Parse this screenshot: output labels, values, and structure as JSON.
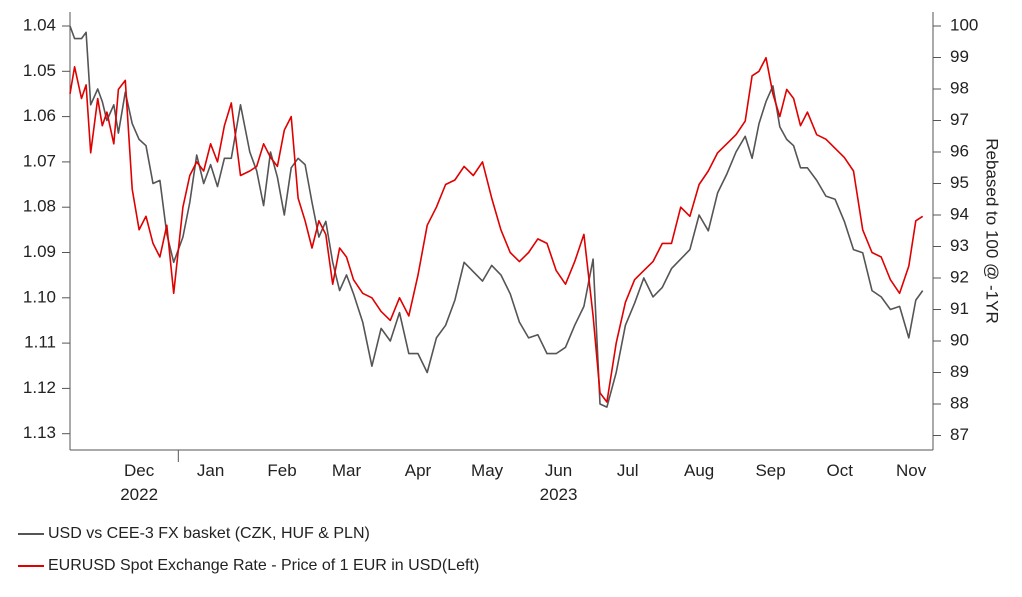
{
  "chart_data": {
    "type": "line",
    "title": "",
    "x_ticks": [
      "Dec",
      "Jan",
      "Feb",
      "Mar",
      "Apr",
      "May",
      "Jun",
      "Jul",
      "Aug",
      "Sep",
      "Oct",
      "Nov"
    ],
    "x_years": [
      "2022",
      "2023"
    ],
    "left_axis": {
      "ticks": [
        "1.04",
        "1.05",
        "1.06",
        "1.07",
        "1.08",
        "1.09",
        "1.10",
        "1.11",
        "1.12",
        "1.13"
      ],
      "range": [
        1.04,
        1.13
      ],
      "inverted": true
    },
    "right_axis": {
      "label": "Rebased to 100 @ -1YR",
      "ticks": [
        "100",
        "99",
        "98",
        "97",
        "96",
        "95",
        "94",
        "93",
        "92",
        "91",
        "90",
        "89",
        "88",
        "87"
      ],
      "range": [
        87,
        100
      ]
    },
    "grid": false,
    "legend_position": "bottom-left",
    "series": [
      {
        "name": "USD vs CEE-3 FX basket (CZK, HUF & PLN)",
        "axis": "right",
        "color": "#555555",
        "x": [
          "2022-11-15",
          "2022-11-17",
          "2022-11-20",
          "2022-11-22",
          "2022-11-24",
          "2022-11-27",
          "2022-11-29",
          "2022-12-01",
          "2022-12-04",
          "2022-12-06",
          "2022-12-09",
          "2022-12-12",
          "2022-12-15",
          "2022-12-18",
          "2022-12-21",
          "2022-12-24",
          "2022-12-27",
          "2022-12-30",
          "2023-01-03",
          "2023-01-06",
          "2023-01-09",
          "2023-01-12",
          "2023-01-15",
          "2023-01-18",
          "2023-01-21",
          "2023-01-24",
          "2023-01-28",
          "2023-02-01",
          "2023-02-04",
          "2023-02-07",
          "2023-02-10",
          "2023-02-13",
          "2023-02-16",
          "2023-02-19",
          "2023-02-22",
          "2023-02-25",
          "2023-02-28",
          "2023-03-03",
          "2023-03-06",
          "2023-03-09",
          "2023-03-12",
          "2023-03-15",
          "2023-03-18",
          "2023-03-22",
          "2023-03-26",
          "2023-03-30",
          "2023-04-03",
          "2023-04-07",
          "2023-04-11",
          "2023-04-15",
          "2023-04-19",
          "2023-04-23",
          "2023-04-27",
          "2023-05-01",
          "2023-05-05",
          "2023-05-09",
          "2023-05-13",
          "2023-05-17",
          "2023-05-21",
          "2023-05-25",
          "2023-05-29",
          "2023-06-02",
          "2023-06-06",
          "2023-06-10",
          "2023-06-14",
          "2023-06-18",
          "2023-06-22",
          "2023-06-26",
          "2023-06-30",
          "2023-07-03",
          "2023-07-06",
          "2023-07-10",
          "2023-07-14",
          "2023-07-18",
          "2023-07-22",
          "2023-07-26",
          "2023-07-30",
          "2023-08-03",
          "2023-08-07",
          "2023-08-11",
          "2023-08-15",
          "2023-08-19",
          "2023-08-23",
          "2023-08-27",
          "2023-08-31",
          "2023-09-04",
          "2023-09-07",
          "2023-09-10",
          "2023-09-13",
          "2023-09-16",
          "2023-09-19",
          "2023-09-22",
          "2023-09-25",
          "2023-09-28",
          "2023-10-01",
          "2023-10-05",
          "2023-10-09",
          "2023-10-13",
          "2023-10-17",
          "2023-10-21",
          "2023-10-25",
          "2023-10-29",
          "2023-11-02",
          "2023-11-06",
          "2023-11-10",
          "2023-11-14",
          "2023-11-17",
          "2023-11-20"
        ],
        "values": [
          100.0,
          99.6,
          99.6,
          99.8,
          97.5,
          98.0,
          97.6,
          97.0,
          97.5,
          96.6,
          97.9,
          96.9,
          96.4,
          96.2,
          95.0,
          95.1,
          93.4,
          92.5,
          93.3,
          94.4,
          95.9,
          95.0,
          95.6,
          94.9,
          95.8,
          95.8,
          97.5,
          96.0,
          95.4,
          94.3,
          96.0,
          95.2,
          94.0,
          95.5,
          95.8,
          95.6,
          94.4,
          93.3,
          93.8,
          92.5,
          91.6,
          92.1,
          91.5,
          90.6,
          89.2,
          90.4,
          90.0,
          90.9,
          89.6,
          89.6,
          89.0,
          90.1,
          90.5,
          91.3,
          92.5,
          92.2,
          91.9,
          92.4,
          92.1,
          91.5,
          90.6,
          90.1,
          90.2,
          89.6,
          89.6,
          89.8,
          90.5,
          91.1,
          92.6,
          88.0,
          87.9,
          89.0,
          90.5,
          91.2,
          92.0,
          91.4,
          91.7,
          92.3,
          92.6,
          92.9,
          94.0,
          93.5,
          94.7,
          95.3,
          96.0,
          96.5,
          95.8,
          96.9,
          97.6,
          98.1,
          96.8,
          96.4,
          96.2,
          95.5,
          95.5,
          95.1,
          94.6,
          94.5,
          93.8,
          92.9,
          92.8,
          91.6,
          91.4,
          91.0,
          91.1,
          90.1,
          91.3,
          91.6
        ]
      },
      {
        "name": "EURUSD Spot Exchange Rate - Price of 1 EUR in USD(Left)",
        "axis": "left",
        "color": "#e00000",
        "x": [
          "2022-11-15",
          "2022-11-17",
          "2022-11-20",
          "2022-11-22",
          "2022-11-24",
          "2022-11-27",
          "2022-11-29",
          "2022-12-01",
          "2022-12-04",
          "2022-12-06",
          "2022-12-09",
          "2022-12-12",
          "2022-12-15",
          "2022-12-18",
          "2022-12-21",
          "2022-12-24",
          "2022-12-27",
          "2022-12-30",
          "2023-01-03",
          "2023-01-06",
          "2023-01-09",
          "2023-01-12",
          "2023-01-15",
          "2023-01-18",
          "2023-01-21",
          "2023-01-24",
          "2023-01-28",
          "2023-02-01",
          "2023-02-04",
          "2023-02-07",
          "2023-02-10",
          "2023-02-13",
          "2023-02-16",
          "2023-02-19",
          "2023-02-22",
          "2023-02-25",
          "2023-02-28",
          "2023-03-03",
          "2023-03-06",
          "2023-03-09",
          "2023-03-12",
          "2023-03-15",
          "2023-03-18",
          "2023-03-22",
          "2023-03-26",
          "2023-03-30",
          "2023-04-03",
          "2023-04-07",
          "2023-04-11",
          "2023-04-15",
          "2023-04-19",
          "2023-04-23",
          "2023-04-27",
          "2023-05-01",
          "2023-05-05",
          "2023-05-09",
          "2023-05-13",
          "2023-05-17",
          "2023-05-21",
          "2023-05-25",
          "2023-05-29",
          "2023-06-02",
          "2023-06-06",
          "2023-06-10",
          "2023-06-14",
          "2023-06-18",
          "2023-06-22",
          "2023-06-26",
          "2023-06-30",
          "2023-07-03",
          "2023-07-06",
          "2023-07-10",
          "2023-07-14",
          "2023-07-18",
          "2023-07-22",
          "2023-07-26",
          "2023-07-30",
          "2023-08-03",
          "2023-08-07",
          "2023-08-11",
          "2023-08-15",
          "2023-08-19",
          "2023-08-23",
          "2023-08-27",
          "2023-08-31",
          "2023-09-04",
          "2023-09-07",
          "2023-09-10",
          "2023-09-13",
          "2023-09-16",
          "2023-09-19",
          "2023-09-22",
          "2023-09-25",
          "2023-09-28",
          "2023-10-01",
          "2023-10-05",
          "2023-10-09",
          "2023-10-13",
          "2023-10-17",
          "2023-10-21",
          "2023-10-25",
          "2023-10-29",
          "2023-11-02",
          "2023-11-06",
          "2023-11-10",
          "2023-11-14",
          "2023-11-17",
          "2023-11-20"
        ],
        "values": [
          1.055,
          1.049,
          1.056,
          1.053,
          1.068,
          1.056,
          1.062,
          1.059,
          1.066,
          1.054,
          1.052,
          1.076,
          1.085,
          1.082,
          1.088,
          1.091,
          1.084,
          1.099,
          1.08,
          1.073,
          1.07,
          1.072,
          1.066,
          1.07,
          1.062,
          1.057,
          1.073,
          1.072,
          1.071,
          1.066,
          1.069,
          1.071,
          1.063,
          1.06,
          1.078,
          1.083,
          1.089,
          1.083,
          1.086,
          1.097,
          1.089,
          1.091,
          1.096,
          1.099,
          1.1,
          1.103,
          1.105,
          1.1,
          1.104,
          1.095,
          1.084,
          1.08,
          1.075,
          1.074,
          1.071,
          1.073,
          1.07,
          1.078,
          1.085,
          1.09,
          1.092,
          1.09,
          1.087,
          1.088,
          1.094,
          1.097,
          1.092,
          1.086,
          1.104,
          1.121,
          1.123,
          1.11,
          1.101,
          1.096,
          1.094,
          1.092,
          1.088,
          1.088,
          1.08,
          1.082,
          1.075,
          1.072,
          1.068,
          1.066,
          1.064,
          1.061,
          1.051,
          1.05,
          1.047,
          1.055,
          1.06,
          1.054,
          1.056,
          1.062,
          1.059,
          1.064,
          1.065,
          1.067,
          1.069,
          1.072,
          1.085,
          1.09,
          1.091,
          1.096,
          1.099,
          1.093,
          1.083,
          1.082
        ]
      }
    ]
  },
  "legend": {
    "items": [
      {
        "label": "USD vs CEE-3 FX basket (CZK, HUF & PLN)",
        "color": "#555555"
      },
      {
        "label": "EURUSD Spot Exchange Rate - Price of 1 EUR in USD(Left)",
        "color": "#e00000"
      }
    ]
  }
}
